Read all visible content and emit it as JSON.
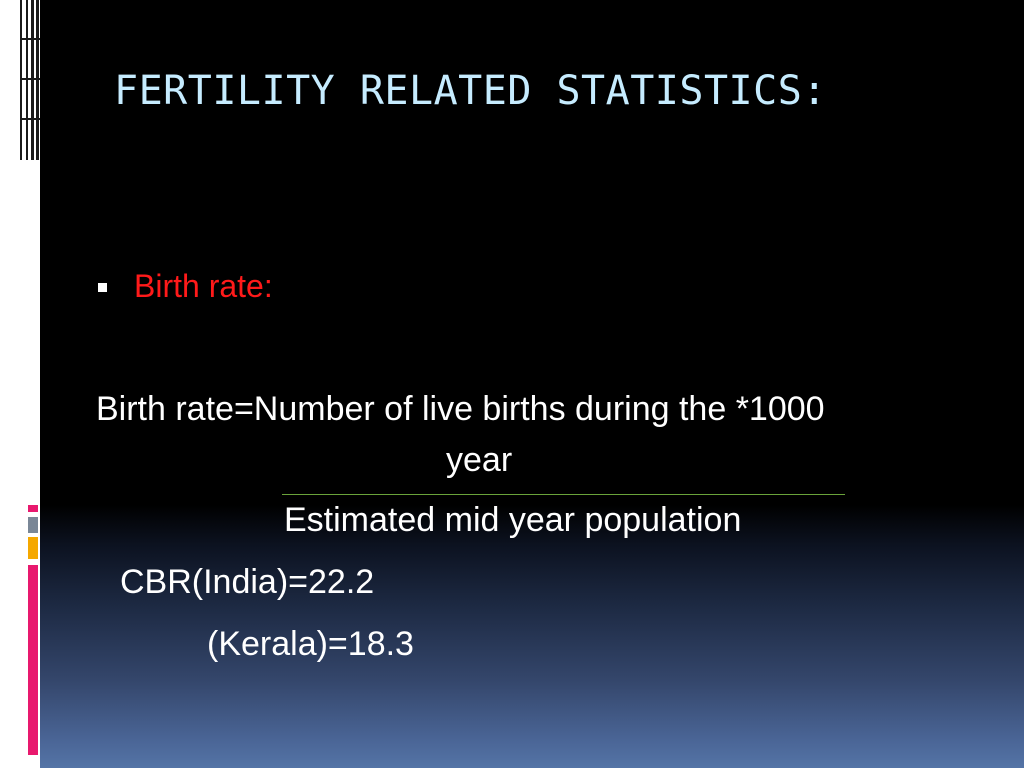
{
  "slide": {
    "title": "FERTILITY RELATED STATISTICS:",
    "bullet": {
      "label": "Birth rate:"
    },
    "formula": {
      "numerator_line": "Birth rate=Number of live births during the *1000",
      "numerator_cont": "year",
      "denominator": "Estimated mid year population"
    },
    "cbr": {
      "india": "CBR(India)=22.2",
      "kerala": "(Kerala)=18.3"
    }
  },
  "colors": {
    "title": "#c6ecff",
    "bullet_label": "#ff1a1a",
    "body_text": "#ffffff",
    "fraction_line": "#6aa33a",
    "deco_pink": "#e8196e",
    "deco_orange": "#f5a800",
    "deco_slate": "#7a8797"
  }
}
